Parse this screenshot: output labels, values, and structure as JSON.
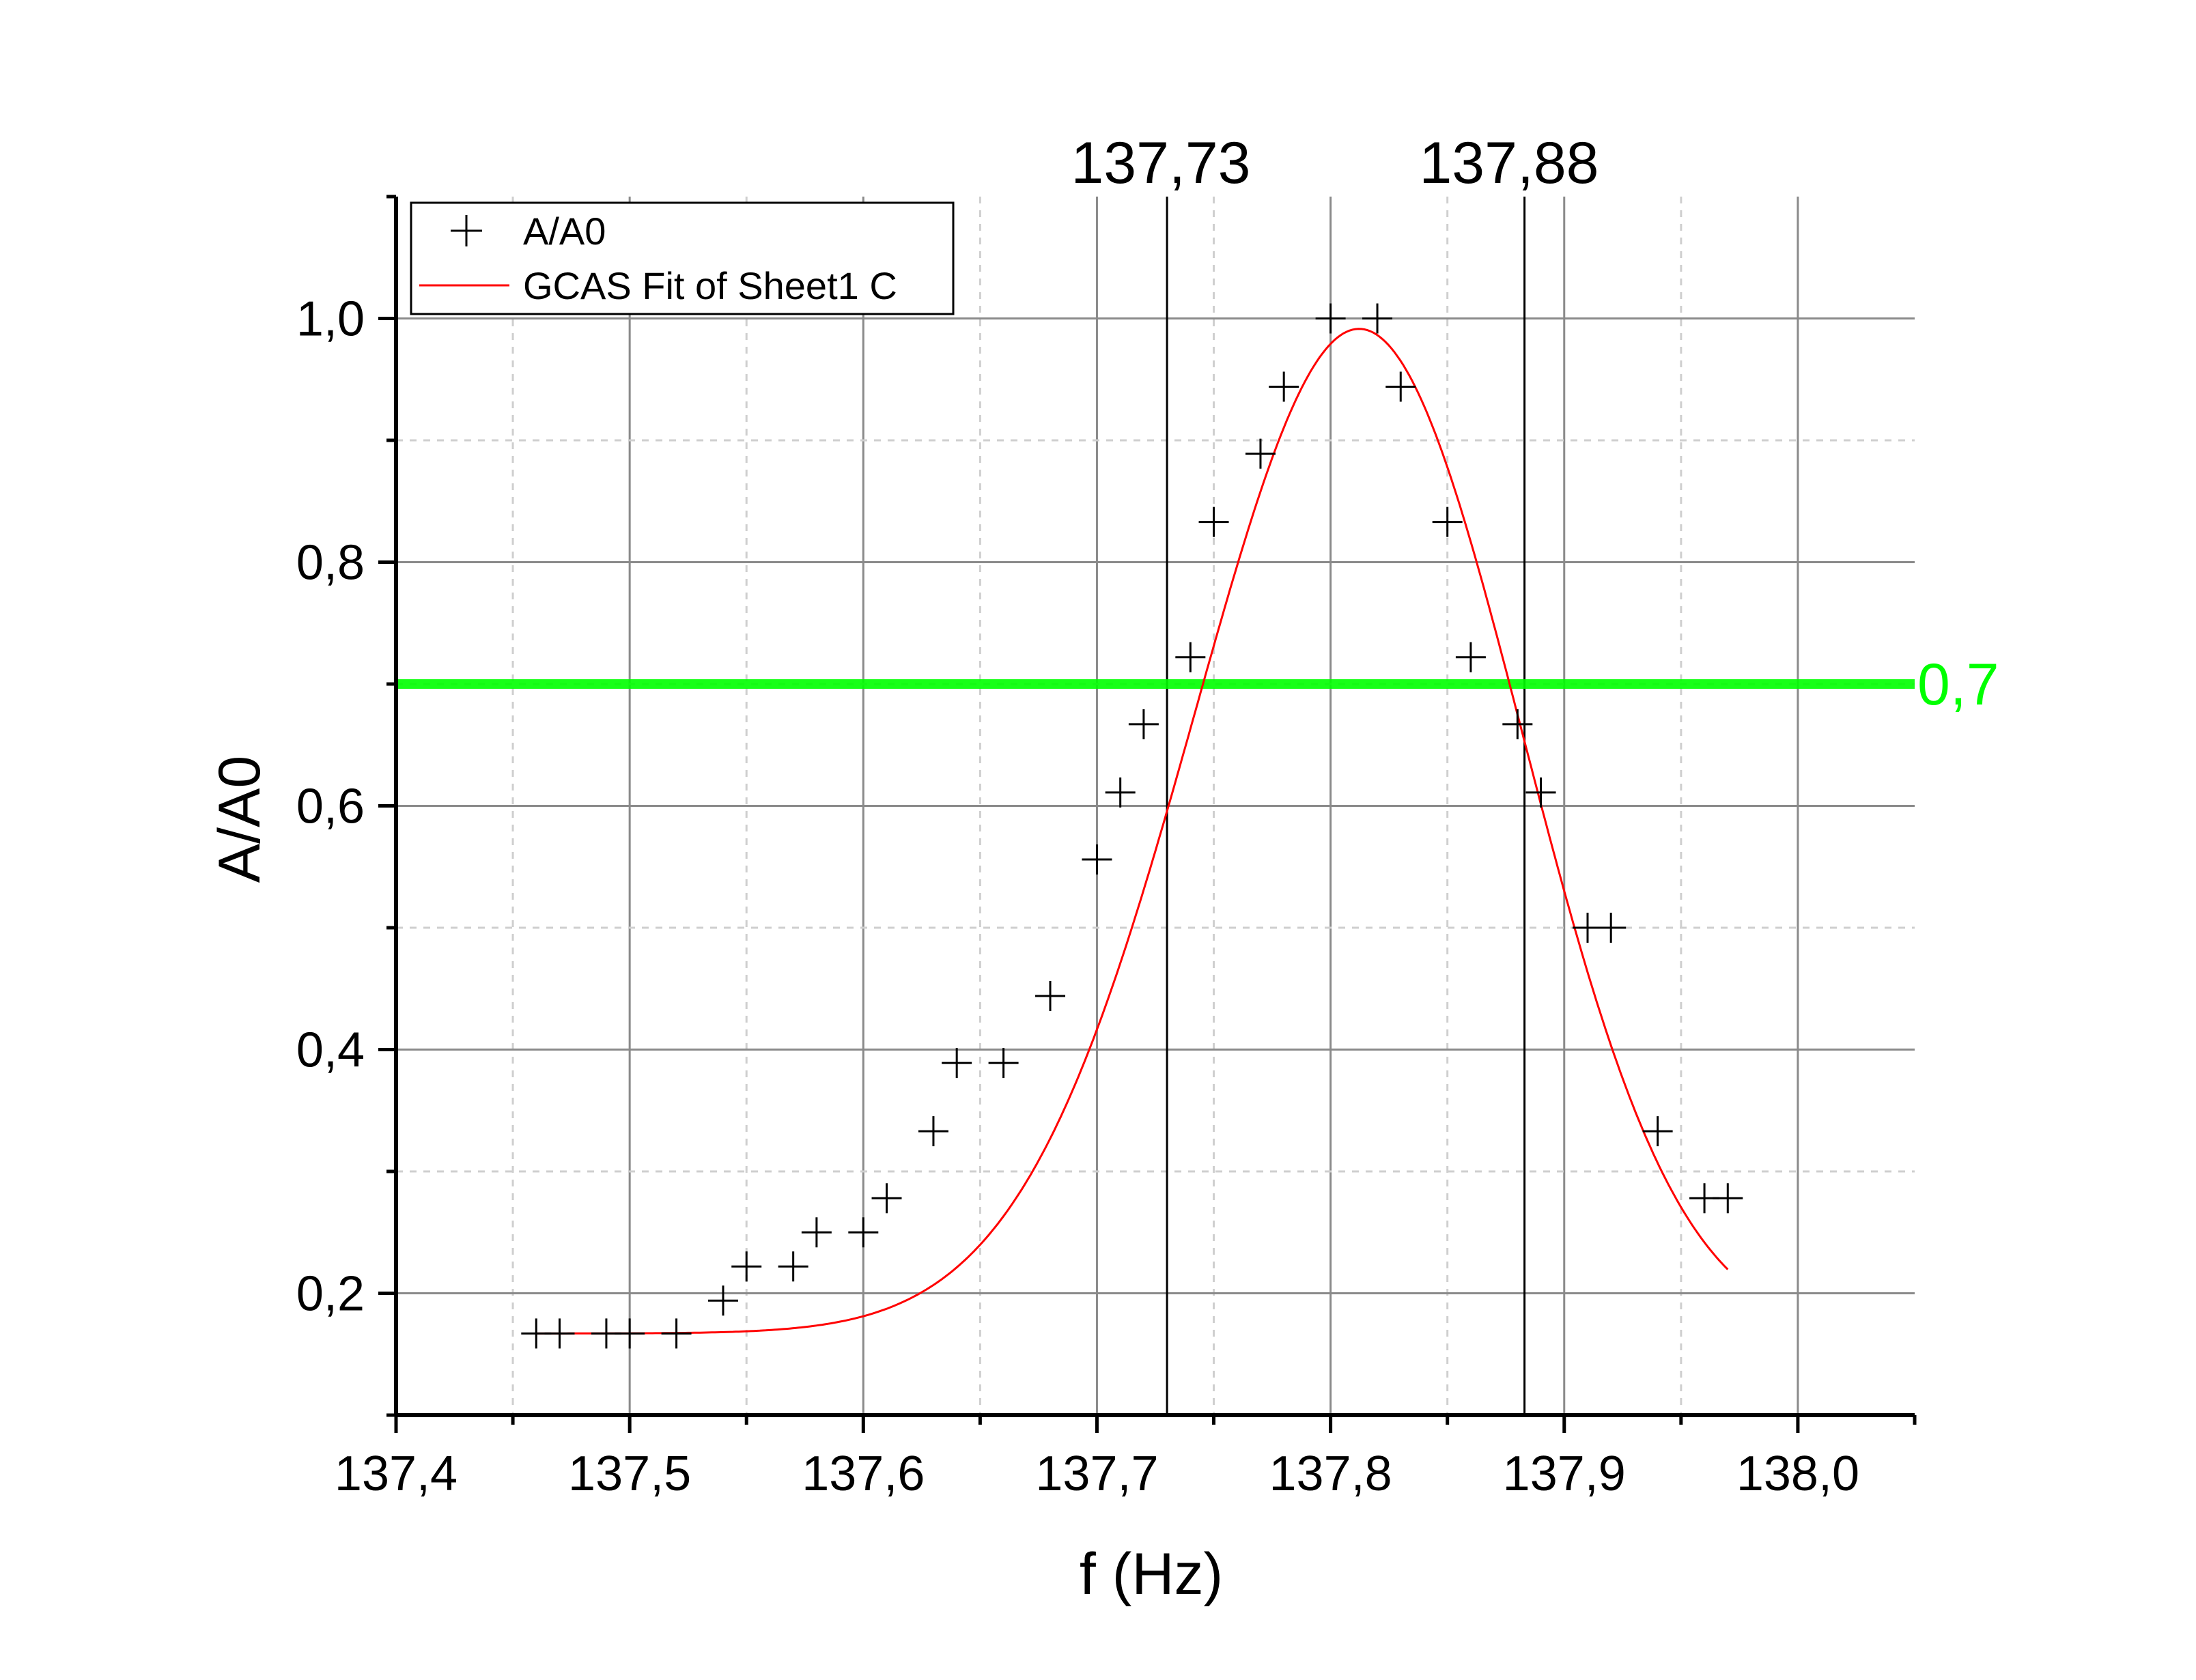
{
  "chart_data": {
    "type": "scatter",
    "xlabel": "f (Hz)",
    "ylabel": "A/A0",
    "xlim": [
      137.4,
      138.05
    ],
    "ylim": [
      0.1,
      1.1
    ],
    "x_ticks": [
      137.4,
      137.5,
      137.6,
      137.7,
      137.8,
      137.9,
      138.0
    ],
    "x_tick_labels": [
      "137,4",
      "137,5",
      "137,6",
      "137,7",
      "137,8",
      "137,9",
      "138,0"
    ],
    "y_ticks": [
      0.2,
      0.4,
      0.6,
      0.8,
      1.0
    ],
    "y_tick_labels": [
      "0,2",
      "0,4",
      "0,6",
      "0,8",
      "1,0"
    ],
    "grid": true,
    "legend_position": "top-left",
    "series": [
      {
        "name": "A/A0",
        "marker": "plus",
        "color": "#000000",
        "x": [
          137.46,
          137.47,
          137.49,
          137.5,
          137.52,
          137.54,
          137.55,
          137.57,
          137.58,
          137.6,
          137.61,
          137.63,
          137.64,
          137.66,
          137.68,
          137.7,
          137.71,
          137.72,
          137.74,
          137.75,
          137.77,
          137.78,
          137.8,
          137.82,
          137.83,
          137.85,
          137.86,
          137.88,
          137.89,
          137.91,
          137.92,
          137.94,
          137.96,
          137.97
        ],
        "y": [
          0.167,
          0.167,
          0.167,
          0.167,
          0.167,
          0.194,
          0.222,
          0.222,
          0.25,
          0.25,
          0.278,
          0.333,
          0.389,
          0.389,
          0.444,
          0.556,
          0.611,
          0.667,
          0.722,
          0.833,
          0.889,
          0.944,
          1.0,
          1.0,
          0.944,
          0.833,
          0.722,
          0.667,
          0.611,
          0.5,
          0.5,
          0.333,
          0.278,
          0.278
        ]
      },
      {
        "name": "GCAS Fit of Sheet1 C",
        "type": "line",
        "color": "#ff0000",
        "fit": {
          "y0": 0.167,
          "amplitude": 0.823,
          "center": 137.808,
          "sigma": 0.0705,
          "skew": -0.02,
          "kurtosis": 0.0,
          "x_start": 137.46,
          "x_end": 137.97
        }
      }
    ],
    "annotations": {
      "threshold": {
        "y": 0.7,
        "label": "0,7",
        "color": "#00ff00"
      },
      "vlines": [
        {
          "x": 137.73,
          "label": "137,73"
        },
        {
          "x": 137.883,
          "label": "137,88"
        }
      ]
    }
  }
}
